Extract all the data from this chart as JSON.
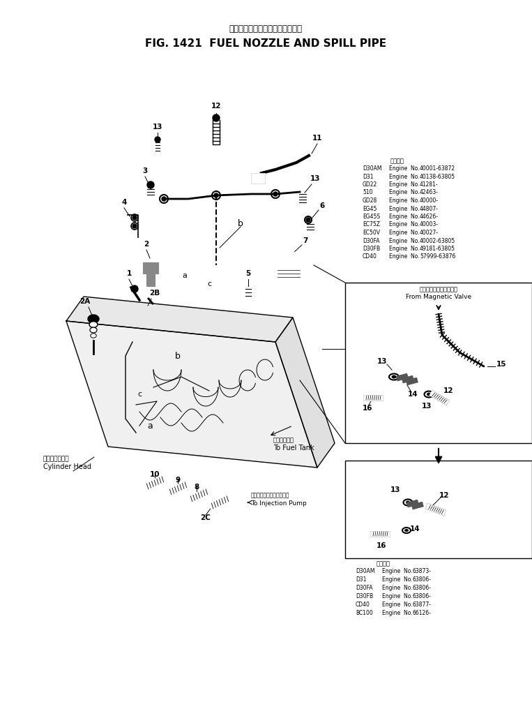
{
  "title_jp": "フェルノズルおよびスピルパイプ",
  "title_en": "FIG. 1421  FUEL NOZZLE AND SPILL PIPE",
  "bg_color": "#ffffff",
  "text_color": "#000000",
  "engine_table1_header": "適用号機",
  "engine_table1": [
    [
      "D30AM",
      "Engine  No.",
      "40001-63872"
    ],
    [
      "D31",
      "Engine  No.",
      "40138-63805"
    ],
    [
      "GD22",
      "Engine  No.",
      "41281-"
    ],
    [
      "510",
      "Engine  No.",
      "42463-"
    ],
    [
      "GD28",
      "Engine  No.",
      "40000-"
    ],
    [
      "EG45",
      "Engine  No.",
      "44807-"
    ],
    [
      "EG45S",
      "Engine  No.",
      "44626-"
    ],
    [
      "EC75Z",
      "Engine  No.",
      "40003-"
    ],
    [
      "EC50V",
      "Engine  No.",
      "40027-"
    ],
    [
      "D30FA",
      "Engine  No.",
      "40002-63805"
    ],
    [
      "D30FB",
      "Engine  No.",
      "49181-63805"
    ],
    [
      "CD40",
      "Engine  No.",
      "57999-63876"
    ]
  ],
  "engine_table2_header": "適用号機",
  "engine_table2": [
    [
      "D30AM",
      "Engine  No.",
      "63873-"
    ],
    [
      "D31",
      "Engine  No.",
      "63806-"
    ],
    [
      "D30FA",
      "Engine  No.",
      "63806-"
    ],
    [
      "D30FB",
      "Engine  No.",
      "63806-"
    ],
    [
      "CD40",
      "Engine  No.",
      "63877-"
    ],
    [
      "BC100",
      "Engine  No.",
      "66126-"
    ]
  ],
  "label_magnetic_jp": "マグネチックバルブから",
  "label_magnetic_en": "From Magnetic Valve",
  "label_fuel_tank_jp": "燃料タンクへ",
  "label_fuel_tank_en": "To Fuel Tank",
  "label_injection_jp": "インジェクションポンプへ",
  "label_injection_en": "To Injection Pump",
  "label_cylinder_jp": "シリンダヘッド",
  "label_cylinder_en": "Cylinder Head"
}
